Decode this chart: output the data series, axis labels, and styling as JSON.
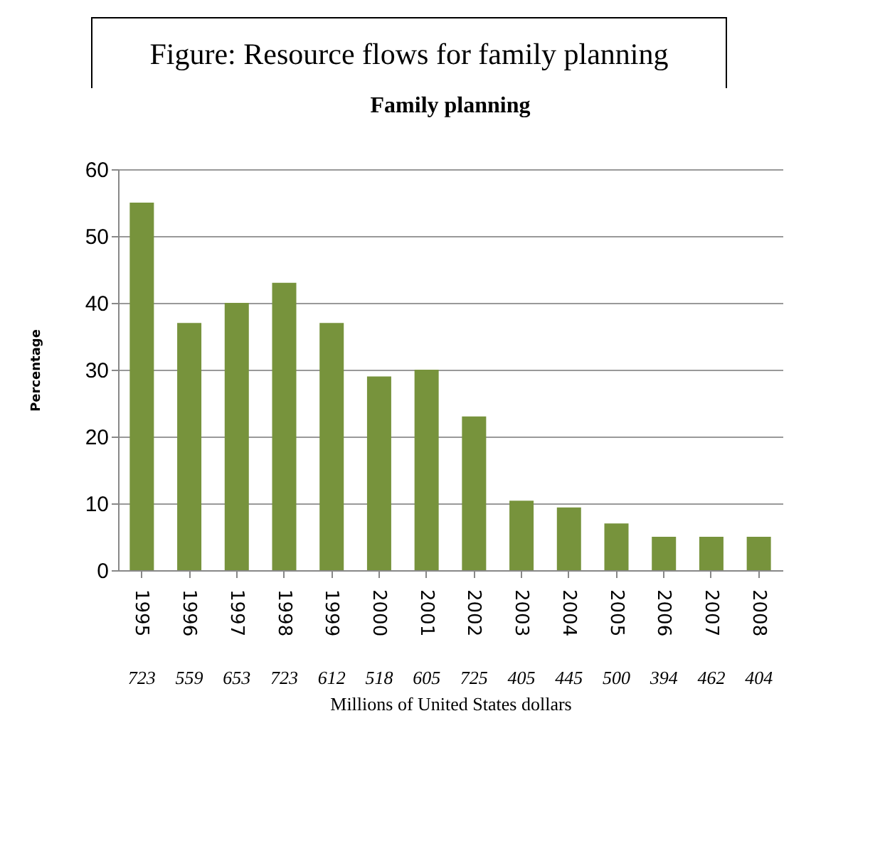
{
  "chart_data": {
    "type": "bar",
    "title": "Figure: Resource flows for family planning",
    "subtitle": "Family planning",
    "xlabel": "Millions of United States dollars",
    "ylabel": "Percentage",
    "categories": [
      "1995",
      "1996",
      "1997",
      "1998",
      "1999",
      "2000",
      "2001",
      "2002",
      "2003",
      "2004",
      "2005",
      "2006",
      "2007",
      "2008"
    ],
    "values": [
      55,
      37,
      40,
      43,
      37,
      29,
      30,
      23,
      10.4,
      9.4,
      7,
      5,
      5,
      5
    ],
    "color": "#77933c",
    "ylim": [
      0,
      60
    ],
    "yticks": [
      0,
      10,
      20,
      30,
      40,
      50,
      60
    ],
    "grid": "y",
    "annotations": [
      "723",
      "559",
      "653",
      "723",
      "612",
      "518",
      "605",
      "725",
      "405",
      "445",
      "500",
      "394",
      "462",
      "404"
    ]
  }
}
